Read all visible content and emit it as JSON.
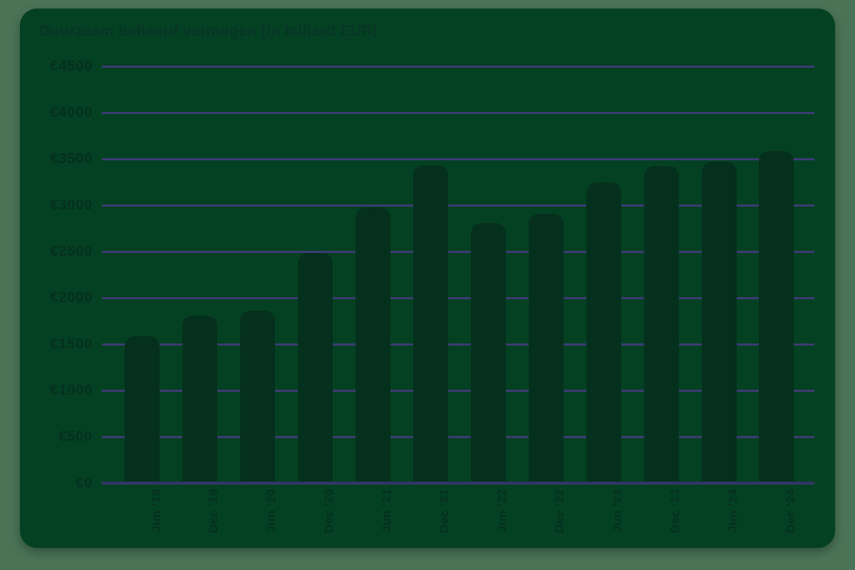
{
  "page": {
    "background": "#4b7457"
  },
  "card": {
    "background": "#044122"
  },
  "chart_data": {
    "type": "bar",
    "title": "Duurzaam beheerd vermogen (in miljard EUR)",
    "categories": [
      "Jun '19",
      "Dec '19",
      "Jun '20",
      "Dec '20",
      "Jun '21",
      "Dec '21",
      "Jun '22",
      "Dec '22",
      "Jun '23",
      "Dec '23",
      "Jun '24",
      "Dec '24"
    ],
    "values": [
      1585,
      1810,
      1860,
      2485,
      2975,
      3430,
      2810,
      2910,
      3245,
      3425,
      3470,
      3585
    ],
    "unit": "miljard EUR",
    "ylim": [
      0,
      4500
    ],
    "ytick_step": 500,
    "ytick_labels": [
      "€4500",
      "€4000",
      "€3500",
      "€3000",
      "€2500",
      "€2000",
      "€1500",
      "€1000",
      "€500",
      "€0"
    ],
    "grid": "horizontal",
    "legend": "none",
    "colors": {
      "bar": "#05301d",
      "gridline": "#3c3b73",
      "baseline": "#32336a",
      "axis_text": "#05301f",
      "title_text": "#073526"
    }
  }
}
